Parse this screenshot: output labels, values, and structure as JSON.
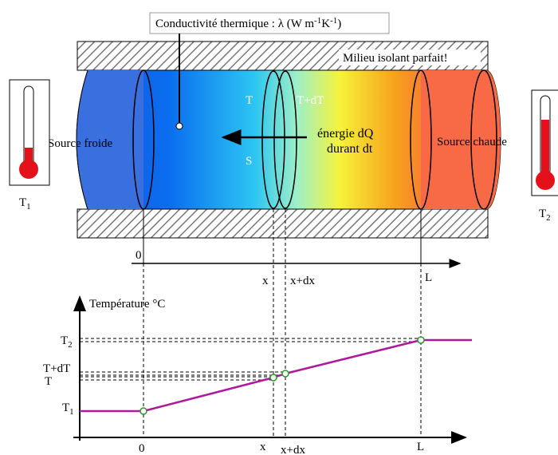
{
  "top_diagram": {
    "conductivity_label": {
      "text": "Conductivité thermique : λ (W m",
      "exp1": "-1",
      "unit2": "K",
      "exp2": "-1",
      "close": ")"
    },
    "insulator_label": "Milieu isolant parfait!",
    "cold_source": "Source froide",
    "hot_source": "Source chaude",
    "slice_left": "T",
    "slice_right": "T+dT",
    "surface": "S",
    "energy_line1": "énergie dQ",
    "energy_line2": "durant dt",
    "thermometer_cold": {
      "symbol": "T",
      "subscript": "1"
    },
    "thermometer_hot": {
      "symbol": "T",
      "subscript": "2"
    },
    "axis": {
      "origin": "0",
      "x": "x",
      "x_dx": "x+dx",
      "length": "L"
    }
  },
  "graph": {
    "y_axis_label": "Température °C",
    "t2": {
      "symbol": "T",
      "subscript": "2"
    },
    "t_dt": "T+dT",
    "t": "T",
    "t1": {
      "symbol": "T",
      "subscript": "1"
    },
    "x_axis": {
      "origin": "0",
      "x": "x",
      "x_dx": "x+dx",
      "length": "L"
    }
  }
}
